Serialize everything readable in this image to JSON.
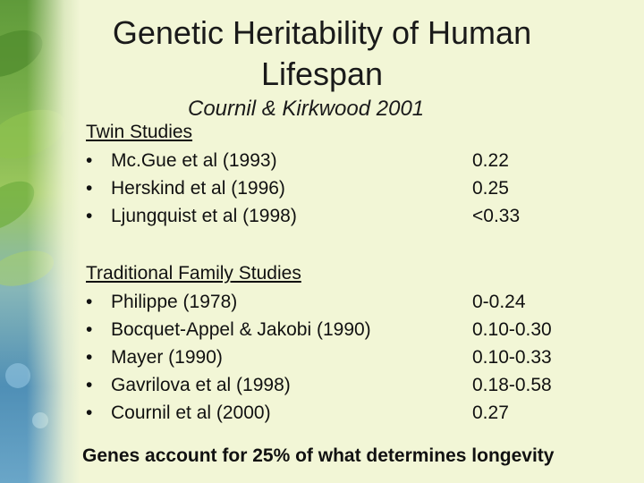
{
  "slide": {
    "title": "Genetic Heritability of Human Lifespan",
    "subtitle": "Cournil & Kirkwood 2001",
    "bullet": "•",
    "sections": [
      {
        "heading": "Twin Studies",
        "items": [
          {
            "name": "Mc.Gue et al (1993)",
            "value": "0.22"
          },
          {
            "name": "Herskind et al (1996)",
            "value": "0.25"
          },
          {
            "name": "Ljungquist et al (1998)",
            "value": "<0.33"
          }
        ]
      },
      {
        "heading": "Traditional Family Studies",
        "items": [
          {
            "name": "Philippe (1978)",
            "value": "0-0.24"
          },
          {
            "name": "Bocquet-Appel & Jakobi (1990)",
            "value": "0.10-0.30"
          },
          {
            "name": "Mayer (1990)",
            "value": "0.10-0.33"
          },
          {
            "name": "Gavrilova et al (1998)",
            "value": "0.18-0.58"
          },
          {
            "name": "Cournil et al (2000)",
            "value": "0.27"
          }
        ]
      }
    ],
    "footer": "Genes account for 25% of what determines longevity"
  }
}
